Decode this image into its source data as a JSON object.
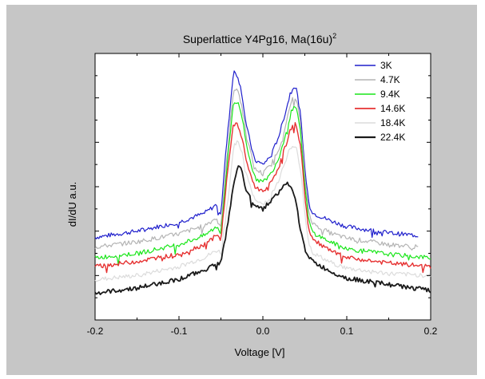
{
  "chart_data": {
    "type": "line",
    "title": "Superlattice Y4Pg16, Ma(16u)",
    "title_superscript": "2",
    "xlabel": "Voltage [V]",
    "ylabel": "dI/dU a.u.",
    "xlim": [
      -0.2,
      0.2
    ],
    "ylim": [
      0,
      3
    ],
    "xticks": [
      -0.2,
      -0.1,
      0.0,
      0.1,
      0.2
    ],
    "xtick_labels": [
      "-0.2",
      "-0.1",
      "0.0",
      "0.1",
      "0.2"
    ],
    "yticks": [
      0.5,
      1.0,
      1.5,
      2.0,
      2.5
    ],
    "ytick_labels_shown": false,
    "grid": false,
    "legend_position": "top-right",
    "series": [
      {
        "name": "3K",
        "color": "#1f1fcc",
        "width": 1.2,
        "x_end": 0.185,
        "x": [
          -0.2,
          -0.15,
          -0.1,
          -0.07,
          -0.055,
          -0.05,
          -0.045,
          -0.04,
          -0.035,
          -0.03,
          -0.025,
          -0.02,
          -0.01,
          0.0,
          0.01,
          0.02,
          0.03,
          0.035,
          0.04,
          0.045,
          0.05,
          0.055,
          0.06,
          0.08,
          0.1,
          0.15,
          0.185
        ],
        "values": [
          0.93,
          1.0,
          1.1,
          1.2,
          1.3,
          1.2,
          1.8,
          2.3,
          2.8,
          2.75,
          2.55,
          2.2,
          1.8,
          1.75,
          1.85,
          2.1,
          2.45,
          2.65,
          2.6,
          2.3,
          1.7,
          1.3,
          1.2,
          1.12,
          1.05,
          0.98,
          0.95
        ]
      },
      {
        "name": "4.7K",
        "color": "#b4b4b4",
        "width": 1.2,
        "x_end": 0.185,
        "x": [
          -0.2,
          -0.15,
          -0.1,
          -0.07,
          -0.055,
          -0.05,
          -0.045,
          -0.04,
          -0.035,
          -0.03,
          -0.025,
          -0.02,
          -0.01,
          0.0,
          0.01,
          0.02,
          0.03,
          0.035,
          0.04,
          0.045,
          0.05,
          0.055,
          0.06,
          0.08,
          0.1,
          0.15,
          0.185
        ],
        "values": [
          0.82,
          0.88,
          0.97,
          1.06,
          1.15,
          1.05,
          1.6,
          2.1,
          2.6,
          2.6,
          2.4,
          2.1,
          1.7,
          1.65,
          1.75,
          1.95,
          2.3,
          2.5,
          2.5,
          2.2,
          1.6,
          1.2,
          1.08,
          0.98,
          0.92,
          0.85,
          0.82
        ]
      },
      {
        "name": "9.4K",
        "color": "#19e619",
        "width": 1.2,
        "x_end": 0.2,
        "x": [
          -0.2,
          -0.15,
          -0.1,
          -0.07,
          -0.055,
          -0.05,
          -0.045,
          -0.04,
          -0.035,
          -0.03,
          -0.025,
          -0.02,
          -0.01,
          0.0,
          0.01,
          0.02,
          0.03,
          0.035,
          0.04,
          0.045,
          0.05,
          0.055,
          0.06,
          0.08,
          0.1,
          0.15,
          0.2
        ],
        "values": [
          0.7,
          0.75,
          0.85,
          0.95,
          1.05,
          0.98,
          1.5,
          2.0,
          2.45,
          2.45,
          2.3,
          2.0,
          1.6,
          1.55,
          1.65,
          1.85,
          2.2,
          2.38,
          2.38,
          2.1,
          1.5,
          1.1,
          0.98,
          0.88,
          0.8,
          0.74,
          0.7
        ]
      },
      {
        "name": "14.6K",
        "color": "#e63232",
        "width": 1.4,
        "x_end": 0.2,
        "x": [
          -0.2,
          -0.15,
          -0.1,
          -0.07,
          -0.055,
          -0.05,
          -0.045,
          -0.04,
          -0.035,
          -0.03,
          -0.025,
          -0.02,
          -0.01,
          0.0,
          0.01,
          0.02,
          0.03,
          0.035,
          0.04,
          0.045,
          0.05,
          0.055,
          0.06,
          0.08,
          0.1,
          0.15,
          0.2
        ],
        "values": [
          0.6,
          0.66,
          0.74,
          0.85,
          0.95,
          0.9,
          1.4,
          1.85,
          2.2,
          2.2,
          2.05,
          1.8,
          1.5,
          1.45,
          1.55,
          1.75,
          2.05,
          2.2,
          2.2,
          1.95,
          1.4,
          1.0,
          0.9,
          0.78,
          0.7,
          0.64,
          0.6
        ]
      },
      {
        "name": "18.4K",
        "color": "#dcdcdc",
        "width": 1.2,
        "x_end": 0.2,
        "x": [
          -0.2,
          -0.15,
          -0.1,
          -0.07,
          -0.055,
          -0.05,
          -0.045,
          -0.04,
          -0.035,
          -0.03,
          -0.025,
          -0.02,
          -0.01,
          0.0,
          0.01,
          0.02,
          0.03,
          0.035,
          0.04,
          0.045,
          0.05,
          0.055,
          0.06,
          0.08,
          0.1,
          0.15,
          0.2
        ],
        "values": [
          0.45,
          0.5,
          0.6,
          0.7,
          0.78,
          0.76,
          1.1,
          1.5,
          1.95,
          2.0,
          1.9,
          1.65,
          1.35,
          1.3,
          1.4,
          1.6,
          1.88,
          1.95,
          1.92,
          1.7,
          1.2,
          0.85,
          0.75,
          0.65,
          0.58,
          0.52,
          0.5
        ]
      },
      {
        "name": "22.4K",
        "color": "#1a1a1a",
        "width": 1.8,
        "x_end": 0.2,
        "x": [
          -0.2,
          -0.15,
          -0.1,
          -0.07,
          -0.055,
          -0.05,
          -0.045,
          -0.04,
          -0.035,
          -0.03,
          -0.025,
          -0.02,
          -0.01,
          0.0,
          0.01,
          0.02,
          0.03,
          0.035,
          0.04,
          0.045,
          0.05,
          0.055,
          0.06,
          0.08,
          0.1,
          0.15,
          0.2
        ],
        "values": [
          0.3,
          0.36,
          0.46,
          0.56,
          0.64,
          0.66,
          0.9,
          1.2,
          1.5,
          1.75,
          1.68,
          1.45,
          1.3,
          1.25,
          1.35,
          1.45,
          1.55,
          1.45,
          1.3,
          1.0,
          0.8,
          0.72,
          0.65,
          0.55,
          0.47,
          0.4,
          0.33
        ]
      }
    ]
  }
}
